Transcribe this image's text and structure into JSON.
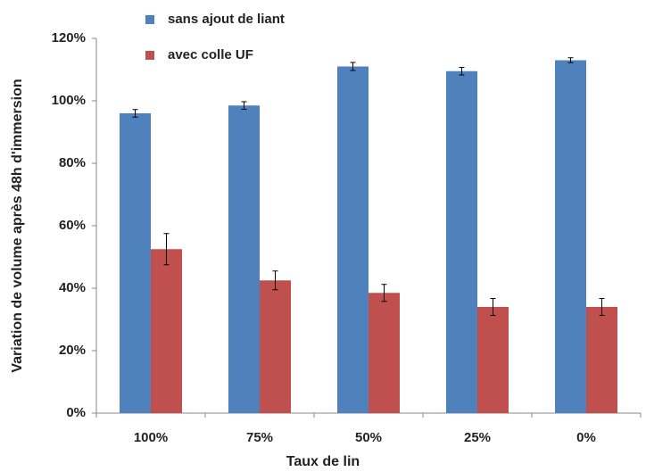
{
  "chart_data": {
    "type": "bar",
    "x_label": "Taux de lin",
    "y_label": "Variation de volume après 48h d'immersion",
    "categories": [
      "100%",
      "75%",
      "50%",
      "25%",
      "0%"
    ],
    "series": [
      {
        "name": "sans ajout de liant",
        "color": "#4f81bd",
        "values": [
          96,
          98.5,
          111,
          109.5,
          113
        ],
        "errors": [
          1.2,
          1.2,
          1.3,
          1.2,
          0.8
        ]
      },
      {
        "name": "avec colle UF",
        "color": "#c0504d",
        "values": [
          52.5,
          42.5,
          38.5,
          34,
          34
        ],
        "errors": [
          5,
          3,
          2.7,
          2.7,
          2.7
        ]
      }
    ],
    "ylim": [
      0,
      120
    ],
    "yticks": [
      {
        "value": 0,
        "label": "0%"
      },
      {
        "value": 20,
        "label": "20%"
      },
      {
        "value": 40,
        "label": "40%"
      },
      {
        "value": 60,
        "label": "60%"
      },
      {
        "value": 80,
        "label": "80%"
      },
      {
        "value": 100,
        "label": "100%"
      },
      {
        "value": 120,
        "label": "120%"
      }
    ],
    "grid": false,
    "legend": "top"
  }
}
